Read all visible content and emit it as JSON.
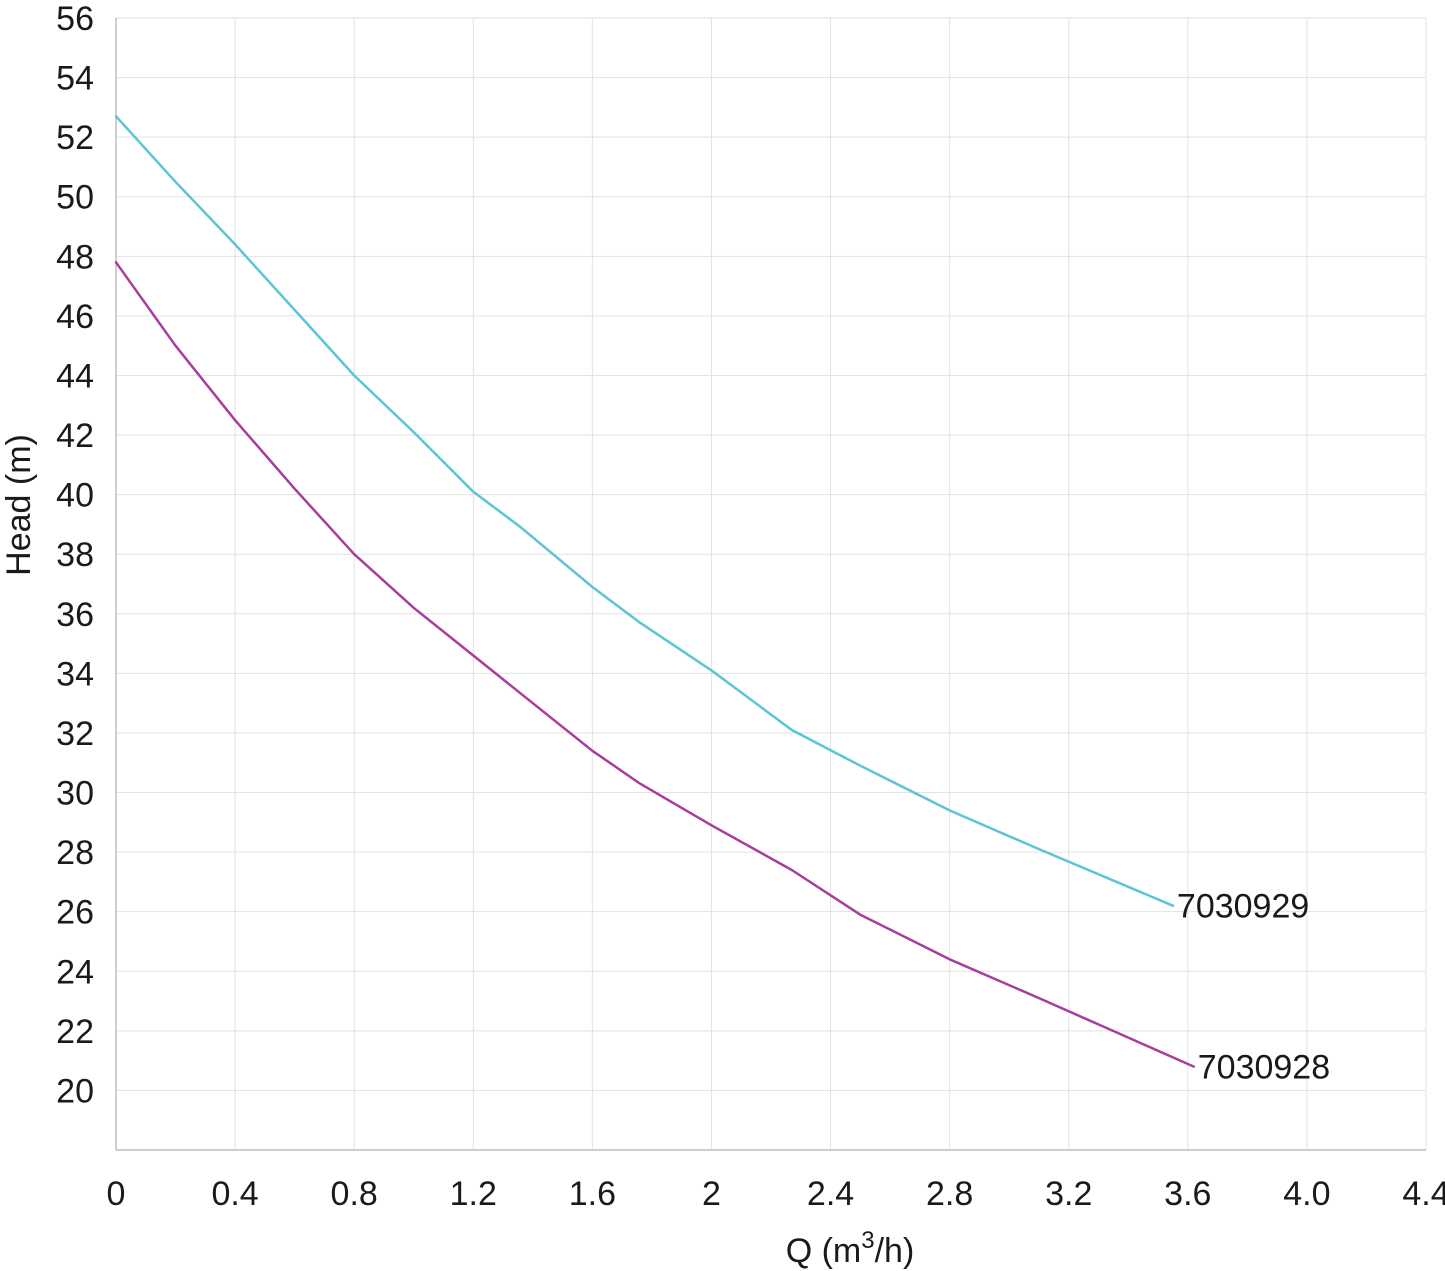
{
  "chart_data": {
    "type": "line",
    "xlabel_parts": {
      "pre": "Q (m",
      "sup": "3",
      "post": "/h)"
    },
    "ylabel": "Head (m)",
    "xlim": [
      0,
      4.4
    ],
    "ylim": [
      18,
      56
    ],
    "x_ticks": [
      {
        "value": 0,
        "label": "0"
      },
      {
        "value": 0.4,
        "label": "0.4"
      },
      {
        "value": 0.8,
        "label": "0.8"
      },
      {
        "value": 1.2,
        "label": "1.2"
      },
      {
        "value": 1.6,
        "label": "1.6"
      },
      {
        "value": 2.0,
        "label": "2"
      },
      {
        "value": 2.4,
        "label": "2.4"
      },
      {
        "value": 2.8,
        "label": "2.8"
      },
      {
        "value": 3.2,
        "label": "3.2"
      },
      {
        "value": 3.6,
        "label": "3.6"
      },
      {
        "value": 4.0,
        "label": "4.0"
      },
      {
        "value": 4.4,
        "label": "4.4"
      }
    ],
    "y_ticks": [
      20,
      22,
      24,
      26,
      28,
      30,
      32,
      34,
      36,
      38,
      40,
      42,
      44,
      46,
      48,
      50,
      52,
      54,
      56
    ],
    "grid": true,
    "series": [
      {
        "name": "7030929",
        "color": "#5bc5d5",
        "x": [
          0,
          0.2,
          0.4,
          0.6,
          0.8,
          1.0,
          1.2,
          1.36,
          1.6,
          1.76,
          2.0,
          2.27,
          2.5,
          2.8,
          3.1,
          3.55
        ],
        "y": [
          52.7,
          50.5,
          48.4,
          46.2,
          44.0,
          42.1,
          40.1,
          38.9,
          36.9,
          35.7,
          34.1,
          32.1,
          30.9,
          29.4,
          28.1,
          26.2
        ]
      },
      {
        "name": "7030928",
        "color": "#a73d9c",
        "x": [
          0,
          0.2,
          0.4,
          0.6,
          0.8,
          1.0,
          1.2,
          1.4,
          1.6,
          1.76,
          2.0,
          2.27,
          2.5,
          2.8,
          3.1,
          3.62
        ],
        "y": [
          47.8,
          45.0,
          42.5,
          40.2,
          38.0,
          36.2,
          34.6,
          33.0,
          31.4,
          30.3,
          28.9,
          27.4,
          25.9,
          24.4,
          23.1,
          20.8
        ]
      }
    ]
  }
}
